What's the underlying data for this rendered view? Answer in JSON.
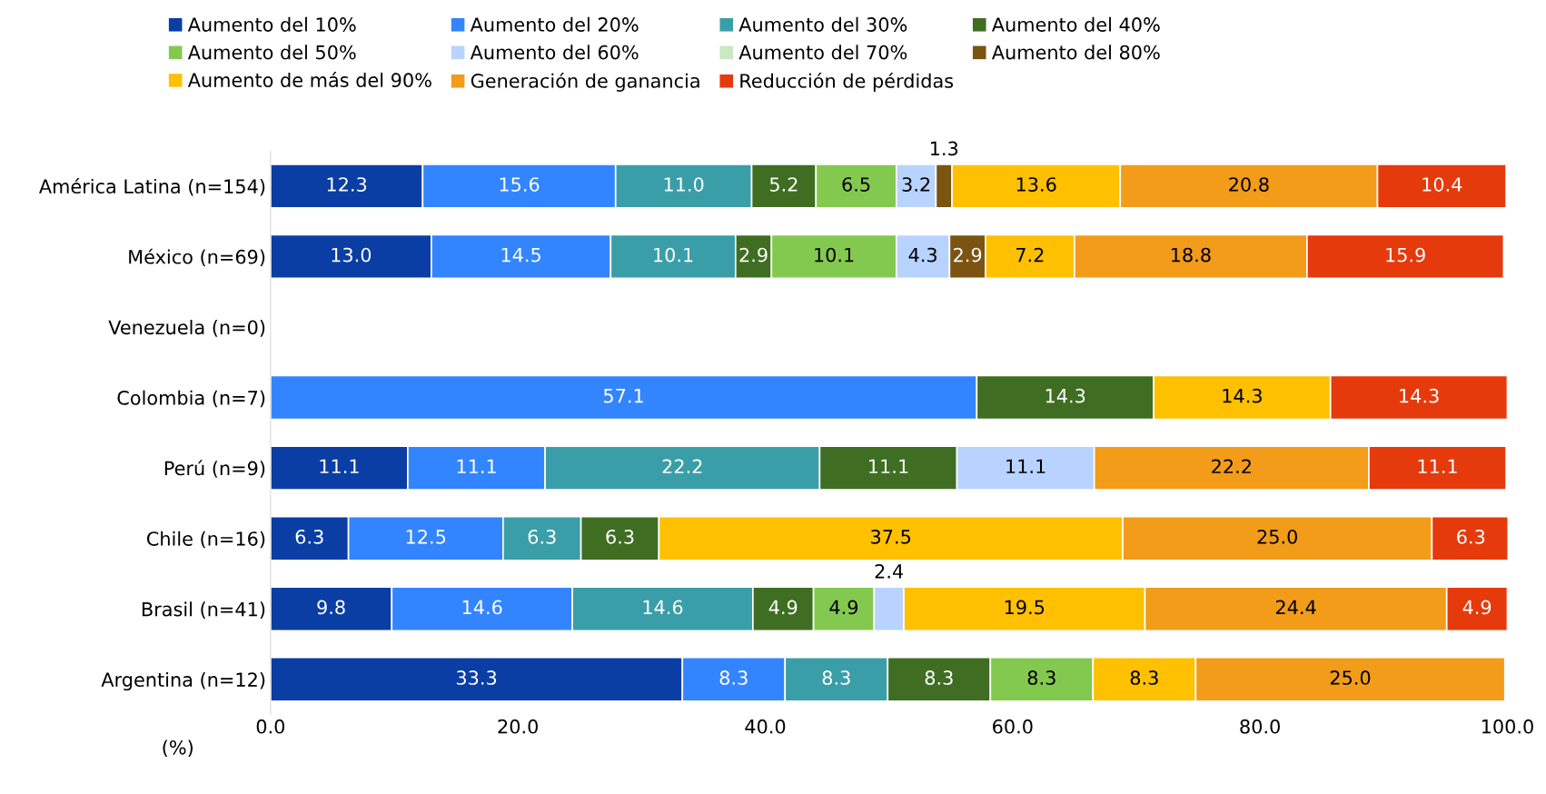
{
  "chart_data": {
    "type": "bar",
    "orientation": "horizontal",
    "stacked": true,
    "legend": "top",
    "grid": false,
    "xlabel": "(%)",
    "categories": [
      "América Latina (n=154)",
      "México (n=69)",
      "Venezuela (n=0)",
      "Colombia (n=7)",
      "Perú (n=9)",
      "Chile (n=16)",
      "Brasil (n=41)",
      "Argentina (n=12)"
    ],
    "xlim": [
      0,
      100
    ],
    "xticks": [
      {
        "value": 0,
        "label": "0.0"
      },
      {
        "value": 20,
        "label": "20.0"
      },
      {
        "value": 40,
        "label": "40.0"
      },
      {
        "value": 60,
        "label": "60.0"
      },
      {
        "value": 80,
        "label": "80.0"
      },
      {
        "value": 100,
        "label": "100.0"
      }
    ],
    "series": [
      {
        "name": "Aumento del 10%",
        "color": "#0a3ea4",
        "values": [
          12.3,
          13,
          null,
          null,
          11.1,
          6.3,
          9.8,
          33.3
        ],
        "value_labels": [
          "12.3",
          "13.0",
          null,
          null,
          "11.1",
          "6.3",
          "9.8",
          "33.3"
        ]
      },
      {
        "name": "Aumento del 20%",
        "color": "#3385ff",
        "values": [
          15.6,
          14.5,
          null,
          57.1,
          11.1,
          12.5,
          14.6,
          8.3
        ],
        "value_labels": [
          "15.6",
          "14.5",
          null,
          "57.1",
          "11.1",
          "12.5",
          "14.6",
          "8.3"
        ]
      },
      {
        "name": "Aumento del 30%",
        "color": "#3a9ea8",
        "values": [
          11,
          10.1,
          null,
          null,
          22.2,
          6.3,
          14.6,
          8.3
        ],
        "value_labels": [
          "11.0",
          "10.1",
          null,
          null,
          "22.2",
          "6.3",
          "14.6",
          "8.3"
        ]
      },
      {
        "name": "Aumento del 40%",
        "color": "#3f6e23",
        "values": [
          5.2,
          2.9,
          null,
          14.3,
          11.1,
          6.3,
          4.9,
          8.3
        ],
        "value_labels": [
          "5.2",
          "2.9",
          null,
          "14.3",
          "11.1",
          "6.3",
          "4.9",
          "8.3"
        ]
      },
      {
        "name": "Aumento del 50%",
        "color": "#84c94f",
        "values": [
          6.5,
          10.1,
          null,
          null,
          null,
          null,
          4.9,
          8.3
        ],
        "value_labels": [
          "6.5",
          "10.1",
          null,
          null,
          null,
          null,
          "4.9",
          "8.3"
        ]
      },
      {
        "name": "Aumento del 60%",
        "color": "#b8d3ff",
        "values": [
          3.2,
          4.3,
          null,
          null,
          11.1,
          null,
          2.4,
          null
        ],
        "value_labels": [
          "3.2",
          "4.3",
          null,
          null,
          "11.1",
          null,
          "2.4",
          null
        ]
      },
      {
        "name": "Aumento del 70%",
        "color": "#c9e8c0",
        "values": [
          null,
          null,
          null,
          null,
          null,
          null,
          null,
          null
        ],
        "value_labels": [
          null,
          null,
          null,
          null,
          null,
          null,
          null,
          null
        ]
      },
      {
        "name": "Aumento del 80%",
        "color": "#7a5410",
        "values": [
          1.3,
          2.9,
          null,
          null,
          null,
          null,
          null,
          null
        ],
        "value_labels": [
          "1.3",
          "2.9",
          null,
          null,
          null,
          null,
          null,
          null
        ]
      },
      {
        "name": "Aumento de más del 90%",
        "color": "#ffc000",
        "values": [
          13.6,
          7.2,
          null,
          14.3,
          null,
          37.5,
          19.5,
          8.3
        ],
        "value_labels": [
          "13.6",
          "7.2",
          null,
          "14.3",
          null,
          "37.5",
          "19.5",
          "8.3"
        ]
      },
      {
        "name": "Generación de ganancia",
        "color": "#f29c1a",
        "values": [
          20.8,
          18.8,
          null,
          null,
          22.2,
          25,
          24.4,
          25
        ],
        "value_labels": [
          "20.8",
          "18.8",
          null,
          null,
          "22.2",
          "25.0",
          "24.4",
          "25.0"
        ]
      },
      {
        "name": "Reducción de pérdidas",
        "color": "#e53a0c",
        "values": [
          10.4,
          15.9,
          null,
          14.3,
          11.1,
          6.3,
          4.9,
          null
        ],
        "value_labels": [
          "10.4",
          "15.9",
          null,
          "14.3",
          "11.1",
          "6.3",
          "4.9",
          null
        ]
      }
    ]
  }
}
